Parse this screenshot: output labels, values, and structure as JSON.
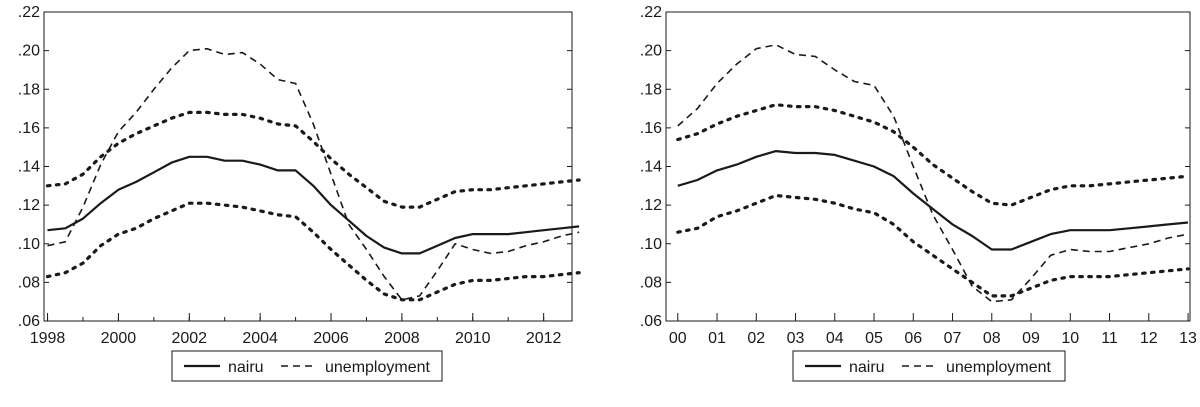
{
  "chart_data": [
    {
      "type": "line",
      "x": [
        1998.0,
        1998.5,
        1999.0,
        1999.5,
        2000.0,
        2000.5,
        2001.0,
        2001.5,
        2002.0,
        2002.5,
        2003.0,
        2003.5,
        2004.0,
        2004.5,
        2005.0,
        2005.5,
        2006.0,
        2006.5,
        2007.0,
        2007.5,
        2008.0,
        2008.5,
        2009.0,
        2009.5,
        2010.0,
        2010.5,
        2011.0,
        2011.5,
        2012.0,
        2012.5,
        2013.0
      ],
      "x_tick_labels": [
        "1998",
        "2000",
        "2002",
        "2004",
        "2006",
        "2008",
        "2010",
        "2012"
      ],
      "y_tick_labels": [
        ".06",
        ".08",
        ".10",
        ".12",
        ".14",
        ".16",
        ".18",
        ".20",
        ".22"
      ],
      "ylim": [
        0.06,
        0.22
      ],
      "xlim": [
        1997.9,
        2012.8
      ],
      "grid": false,
      "series": [
        {
          "name": "nairu",
          "style": "solid",
          "color": "#1a1a1a",
          "values": [
            0.107,
            0.108,
            0.113,
            0.121,
            0.128,
            0.132,
            0.137,
            0.142,
            0.145,
            0.145,
            0.143,
            0.143,
            0.141,
            0.138,
            0.138,
            0.13,
            0.12,
            0.112,
            0.104,
            0.098,
            0.095,
            0.095,
            0.099,
            0.103,
            0.105,
            0.105,
            0.105,
            0.106,
            0.107,
            0.108,
            0.109
          ]
        },
        {
          "name": "unemployment",
          "style": "dashed",
          "color": "#1a1a1a",
          "values": [
            0.099,
            0.101,
            0.119,
            0.141,
            0.158,
            0.168,
            0.18,
            0.191,
            0.2,
            0.201,
            0.198,
            0.199,
            0.193,
            0.185,
            0.183,
            0.162,
            0.136,
            0.11,
            0.097,
            0.083,
            0.071,
            0.073,
            0.086,
            0.1,
            0.097,
            0.095,
            0.096,
            0.099,
            0.101,
            0.104,
            0.106
          ]
        },
        {
          "style": "dotted",
          "color": "#1a1a1a",
          "values": [
            0.13,
            0.131,
            0.136,
            0.145,
            0.152,
            0.157,
            0.161,
            0.165,
            0.168,
            0.168,
            0.167,
            0.167,
            0.165,
            0.162,
            0.161,
            0.153,
            0.144,
            0.136,
            0.129,
            0.122,
            0.119,
            0.119,
            0.123,
            0.127,
            0.128,
            0.128,
            0.129,
            0.13,
            0.131,
            0.132,
            0.133
          ]
        },
        {
          "style": "dotted",
          "color": "#1a1a1a",
          "values": [
            0.083,
            0.085,
            0.09,
            0.099,
            0.105,
            0.108,
            0.113,
            0.117,
            0.121,
            0.121,
            0.12,
            0.119,
            0.117,
            0.115,
            0.114,
            0.106,
            0.097,
            0.089,
            0.081,
            0.074,
            0.071,
            0.071,
            0.075,
            0.079,
            0.081,
            0.081,
            0.082,
            0.083,
            0.083,
            0.084,
            0.085
          ]
        }
      ]
    },
    {
      "type": "line",
      "x": [
        0.0,
        0.5,
        1.0,
        1.5,
        2.0,
        2.5,
        3.0,
        3.5,
        4.0,
        4.5,
        5.0,
        5.5,
        6.0,
        6.5,
        7.0,
        7.5,
        8.0,
        8.5,
        9.0,
        9.5,
        10.0,
        10.5,
        11.0,
        11.5,
        12.0,
        12.5,
        13.0
      ],
      "x_tick_labels": [
        "00",
        "01",
        "02",
        "03",
        "04",
        "05",
        "06",
        "07",
        "08",
        "09",
        "10",
        "11",
        "12",
        "13"
      ],
      "y_tick_labels": [
        ".06",
        ".08",
        ".10",
        ".12",
        ".14",
        ".16",
        ".18",
        ".20",
        ".22"
      ],
      "ylim": [
        0.06,
        0.22
      ],
      "xlim": [
        -0.3,
        13.05
      ],
      "grid": false,
      "series": [
        {
          "name": "nairu",
          "style": "solid",
          "color": "#1a1a1a",
          "values": [
            0.13,
            0.133,
            0.138,
            0.141,
            0.145,
            0.148,
            0.147,
            0.147,
            0.146,
            0.143,
            0.14,
            0.135,
            0.126,
            0.118,
            0.11,
            0.104,
            0.097,
            0.097,
            0.101,
            0.105,
            0.107,
            0.107,
            0.107,
            0.108,
            0.109,
            0.11,
            0.111
          ]
        },
        {
          "name": "unemployment",
          "style": "dashed",
          "color": "#1a1a1a",
          "values": [
            0.161,
            0.17,
            0.183,
            0.193,
            0.201,
            0.203,
            0.198,
            0.197,
            0.19,
            0.184,
            0.182,
            0.166,
            0.14,
            0.115,
            0.097,
            0.078,
            0.07,
            0.071,
            0.082,
            0.094,
            0.097,
            0.096,
            0.096,
            0.098,
            0.1,
            0.103,
            0.105
          ]
        },
        {
          "style": "dotted",
          "color": "#1a1a1a",
          "values": [
            0.154,
            0.157,
            0.162,
            0.166,
            0.169,
            0.172,
            0.171,
            0.171,
            0.169,
            0.166,
            0.163,
            0.158,
            0.15,
            0.141,
            0.134,
            0.127,
            0.121,
            0.12,
            0.124,
            0.128,
            0.13,
            0.13,
            0.131,
            0.132,
            0.133,
            0.134,
            0.135
          ]
        },
        {
          "style": "dotted",
          "color": "#1a1a1a",
          "values": [
            0.106,
            0.108,
            0.114,
            0.117,
            0.121,
            0.125,
            0.124,
            0.123,
            0.121,
            0.118,
            0.116,
            0.11,
            0.101,
            0.094,
            0.087,
            0.08,
            0.073,
            0.073,
            0.077,
            0.081,
            0.083,
            0.083,
            0.083,
            0.084,
            0.085,
            0.086,
            0.087
          ]
        }
      ]
    }
  ]
}
